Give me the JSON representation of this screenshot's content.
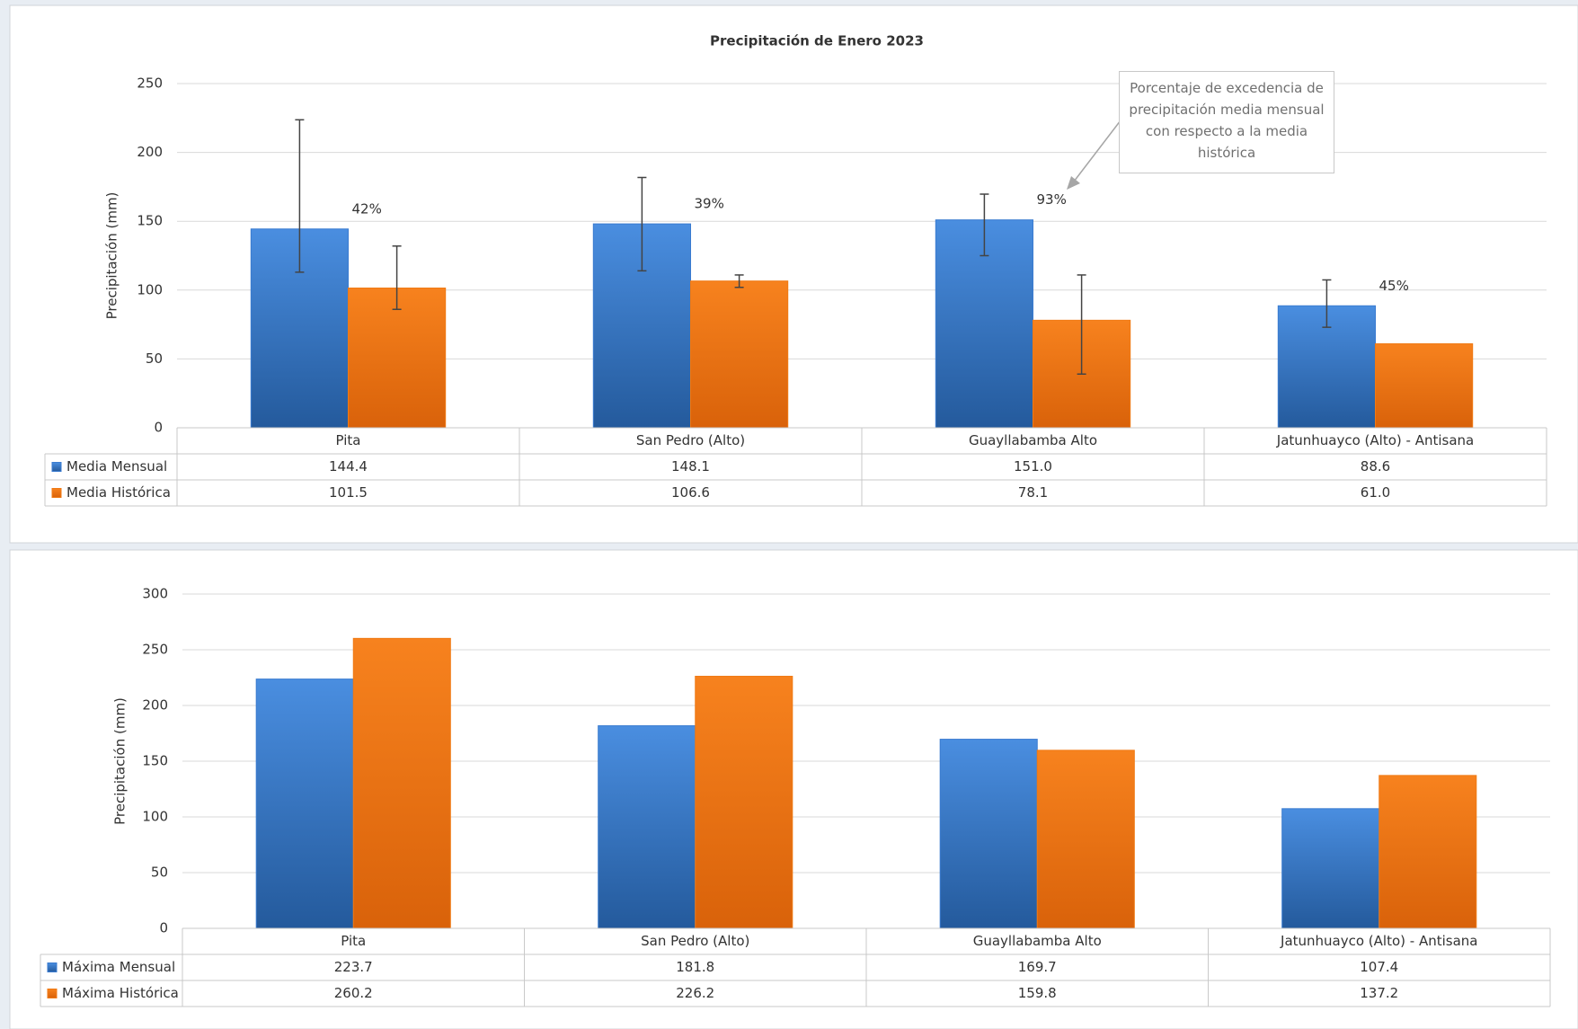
{
  "chart_data": [
    {
      "type": "bar",
      "title": "Precipitación de Enero 2023",
      "y_label": "Precipitación (mm)",
      "categories": [
        "Pita",
        "San Pedro (Alto)",
        "Guayllabamba Alto",
        "Jatunhuayco (Alto) - Antisana"
      ],
      "series": [
        {
          "name": "Media Mensual",
          "color": "#3a7bd0",
          "values": [
            144.4,
            148.1,
            151.0,
            88.6
          ],
          "value_labels": [
            "144.4",
            "148.1",
            "151.0",
            "88.6"
          ],
          "error_low": [
            113,
            114,
            125,
            73
          ],
          "error_high": [
            223.7,
            181.8,
            169.7,
            107.4
          ]
        },
        {
          "name": "Media Histórica",
          "color": "#f07a14",
          "values": [
            101.5,
            106.6,
            78.1,
            61.0
          ],
          "value_labels": [
            "101.5",
            "106.6",
            "78.1",
            "61.0"
          ],
          "error_low": [
            86,
            102,
            39,
            null
          ],
          "error_high": [
            132,
            111,
            111,
            null
          ]
        }
      ],
      "excess": {
        "values": [
          42,
          39,
          93,
          45
        ],
        "value_labels": [
          "42%",
          "39%",
          "93%",
          "45%"
        ]
      },
      "annotation": "Porcentaje de excedencia de precipitación media mensual con respecto a la media histórica",
      "ylim": [
        0,
        250
      ],
      "yticks": [
        0,
        50,
        100,
        150,
        200,
        250
      ],
      "grid": true
    },
    {
      "type": "bar",
      "y_label": "Precipitación (mm)",
      "categories": [
        "Pita",
        "San Pedro (Alto)",
        "Guayllabamba Alto",
        "Jatunhuayco (Alto) - Antisana"
      ],
      "series": [
        {
          "name": "Máxima Mensual",
          "color": "#3a7bd0",
          "values": [
            223.7,
            181.8,
            169.7,
            107.4
          ],
          "value_labels": [
            "223.7",
            "181.8",
            "169.7",
            "107.4"
          ]
        },
        {
          "name": "Máxima Histórica",
          "color": "#f07a14",
          "values": [
            260.2,
            226.2,
            159.8,
            137.2
          ],
          "value_labels": [
            "260.2",
            "226.2",
            "159.8",
            "137.2"
          ]
        }
      ],
      "ylim": [
        0,
        300
      ],
      "yticks": [
        0,
        50,
        100,
        150,
        200,
        250,
        300
      ],
      "grid": true
    }
  ]
}
